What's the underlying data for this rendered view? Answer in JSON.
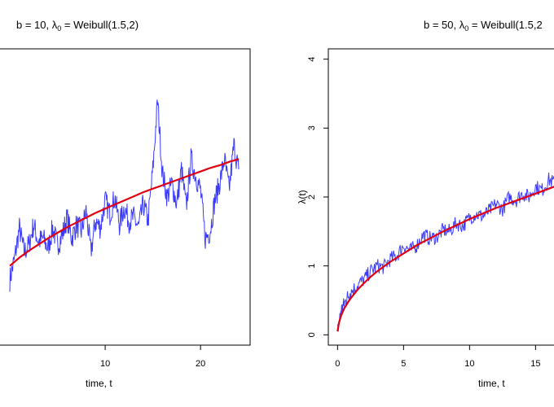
{
  "chart_data": [
    {
      "type": "line",
      "title_prefix": "b = 10, ",
      "title_lambda": "λ",
      "title_sub": "0",
      "title_suffix": " = Weibull(1.5,2)",
      "xlabel": "time, t",
      "ylabel": "",
      "xlim": [
        -1.2,
        25.2
      ],
      "ylim": [
        -0.15,
        4.15
      ],
      "xticks": [
        10,
        20
      ],
      "yticks": [],
      "series": [
        {
          "color": "#3b3bff",
          "style": "noisy",
          "x": [
            0,
            0.5,
            1,
            1.5,
            2,
            2.5,
            3,
            3.5,
            4,
            4.5,
            5,
            5.5,
            6,
            6.5,
            7,
            7.5,
            8,
            8.5,
            9,
            9.5,
            10,
            10.5,
            11,
            11.5,
            12,
            12.5,
            13,
            13.5,
            14,
            14.5,
            15,
            15.5,
            16,
            16.5,
            17,
            17.5,
            18,
            18.5,
            19,
            19.5,
            20,
            20.5,
            21,
            21.5,
            22,
            22.5,
            23,
            23.5,
            24
          ],
          "y": [
            0.8,
            1.1,
            1.55,
            1.2,
            1.3,
            1.6,
            1.35,
            1.4,
            1.25,
            1.55,
            1.3,
            1.45,
            1.7,
            1.4,
            1.6,
            1.5,
            1.8,
            1.2,
            1.65,
            1.55,
            1.95,
            1.75,
            2.0,
            1.6,
            1.85,
            1.65,
            1.7,
            1.55,
            1.9,
            1.65,
            2.4,
            3.4,
            2.35,
            2.0,
            2.2,
            1.9,
            2.4,
            1.85,
            2.55,
            2.3,
            2.1,
            1.4,
            1.5,
            1.95,
            2.2,
            2.55,
            2.1,
            2.75,
            2.4
          ]
        },
        {
          "color": "#e0000f",
          "style": "smooth",
          "x": [
            0,
            1,
            2,
            3,
            4,
            5,
            6,
            7,
            8,
            9,
            10,
            11,
            12,
            13,
            14,
            15,
            16,
            17,
            18,
            19,
            20,
            21,
            22,
            23,
            24
          ],
          "y": [
            1.0,
            1.12,
            1.22,
            1.31,
            1.4,
            1.48,
            1.56,
            1.63,
            1.7,
            1.77,
            1.83,
            1.89,
            1.95,
            2.01,
            2.07,
            2.12,
            2.17,
            2.22,
            2.27,
            2.32,
            2.37,
            2.42,
            2.46,
            2.51,
            2.55
          ]
        }
      ]
    },
    {
      "type": "line",
      "title_prefix": "b = 50, ",
      "title_lambda": "λ",
      "title_sub": "0",
      "title_suffix": " = Weibull(1.5,2",
      "xlabel": "time, t",
      "ylabel": "λ(t)",
      "xlim": [
        -0.7,
        17.2
      ],
      "ylim": [
        -0.15,
        4.15
      ],
      "xticks": [
        0,
        5,
        10,
        15
      ],
      "yticks": [
        0,
        1,
        2,
        3,
        4
      ],
      "series": [
        {
          "color": "#3b3bff",
          "style": "noisy",
          "x": [
            0,
            0.25,
            0.5,
            0.75,
            1,
            1.5,
            2,
            2.5,
            3,
            3.5,
            4,
            4.5,
            5,
            5.5,
            6,
            6.5,
            7,
            7.5,
            8,
            8.5,
            9,
            9.5,
            10,
            10.5,
            11,
            11.5,
            12,
            12.5,
            13,
            13.5,
            14,
            14.5,
            15,
            15.5,
            16,
            16.5,
            17
          ],
          "y": [
            0.05,
            0.35,
            0.45,
            0.55,
            0.62,
            0.72,
            0.8,
            0.92,
            1.0,
            0.98,
            1.1,
            1.15,
            1.3,
            1.22,
            1.3,
            1.45,
            1.4,
            1.42,
            1.52,
            1.5,
            1.62,
            1.58,
            1.7,
            1.75,
            1.72,
            1.8,
            1.9,
            1.82,
            2.0,
            1.95,
            2.05,
            2.0,
            2.15,
            2.1,
            2.25,
            2.2,
            2.3
          ]
        },
        {
          "color": "#e0000f",
          "style": "smooth",
          "x": [
            0,
            0.1,
            0.25,
            0.5,
            0.75,
            1,
            1.5,
            2,
            2.5,
            3,
            3.5,
            4,
            5,
            6,
            7,
            8,
            9,
            10,
            11,
            12,
            13,
            14,
            15,
            16,
            17
          ],
          "y": [
            0.05,
            0.17,
            0.27,
            0.38,
            0.46,
            0.53,
            0.65,
            0.75,
            0.84,
            0.92,
            0.99,
            1.06,
            1.18,
            1.3,
            1.4,
            1.5,
            1.59,
            1.68,
            1.76,
            1.84,
            1.91,
            1.98,
            2.05,
            2.12,
            2.19
          ]
        }
      ]
    }
  ]
}
